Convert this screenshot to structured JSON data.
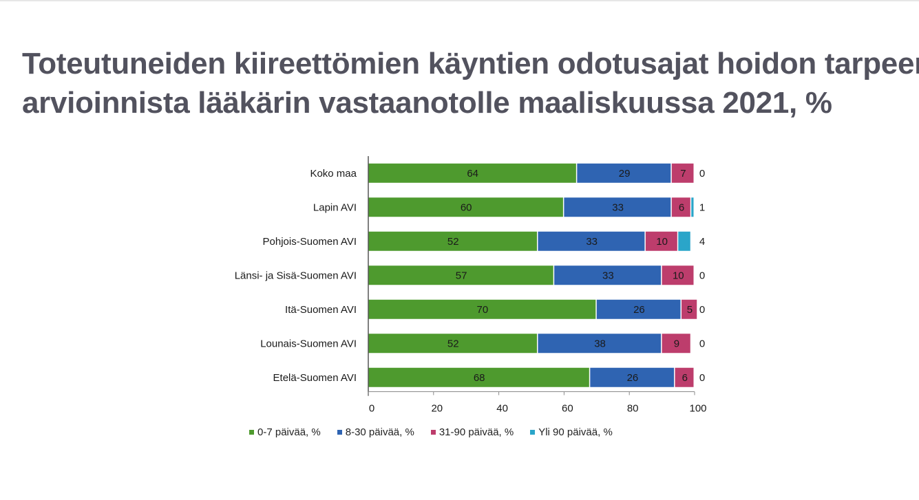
{
  "title_line1": "Toteutuneiden kiireettömien käyntien odotusajat hoidon tarpeen",
  "title_line2": "arvioinnista lääkärin vastaanotolle maaliskuussa 2021, %",
  "chart_data": {
    "type": "bar",
    "orientation": "horizontal",
    "stacked": true,
    "categories": [
      "Koko maa",
      "Lapin AVI",
      "Pohjois-Suomen AVI",
      "Länsi- ja Sisä-Suomen AVI",
      "Itä-Suomen AVI",
      "Lounais-Suomen AVI",
      "Etelä-Suomen AVI"
    ],
    "series": [
      {
        "name": "0-7 päivää, %",
        "color": "#4e9a2e",
        "values": [
          64,
          60,
          52,
          57,
          70,
          52,
          68
        ]
      },
      {
        "name": "8-30 päivää, %",
        "color": "#2f64b2",
        "values": [
          29,
          33,
          33,
          33,
          26,
          38,
          26
        ]
      },
      {
        "name": "31-90 päivää, %",
        "color": "#bd3d6c",
        "values": [
          7,
          6,
          10,
          10,
          5,
          9,
          6
        ]
      },
      {
        "name": "Yli 90 päivää, %",
        "color": "#2aa5c9",
        "values": [
          0,
          1,
          4,
          0,
          0,
          0,
          0
        ]
      }
    ],
    "xlim": [
      0,
      100
    ],
    "xticks": [
      0,
      20,
      40,
      60,
      80,
      100
    ],
    "legend_position": "bottom",
    "grid": false
  }
}
